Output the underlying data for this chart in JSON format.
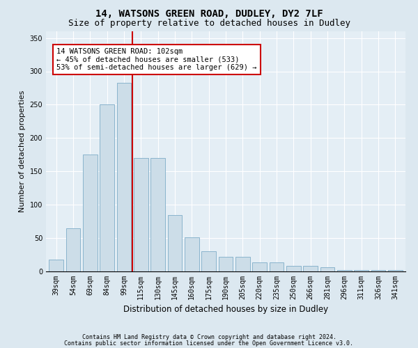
{
  "title1": "14, WATSONS GREEN ROAD, DUDLEY, DY2 7LF",
  "title2": "Size of property relative to detached houses in Dudley",
  "xlabel": "Distribution of detached houses by size in Dudley",
  "ylabel": "Number of detached properties",
  "categories": [
    "39sqm",
    "54sqm",
    "69sqm",
    "84sqm",
    "99sqm",
    "115sqm",
    "130sqm",
    "145sqm",
    "160sqm",
    "175sqm",
    "190sqm",
    "205sqm",
    "220sqm",
    "235sqm",
    "250sqm",
    "266sqm",
    "281sqm",
    "296sqm",
    "311sqm",
    "326sqm",
    "341sqm"
  ],
  "values": [
    18,
    65,
    175,
    250,
    283,
    170,
    170,
    85,
    51,
    30,
    22,
    22,
    14,
    14,
    8,
    8,
    6,
    2,
    2,
    2,
    2
  ],
  "bar_color": "#ccdde8",
  "bar_edge_color": "#8ab4cc",
  "vline_color": "#cc0000",
  "vline_pos": 4.5,
  "annotation_text": "14 WATSONS GREEN ROAD: 102sqm\n← 45% of detached houses are smaller (533)\n53% of semi-detached houses are larger (629) →",
  "footer1": "Contains HM Land Registry data © Crown copyright and database right 2024.",
  "footer2": "Contains public sector information licensed under the Open Government Licence v3.0.",
  "bg_color": "#dce8f0",
  "plot_bg_color": "#e4eef5",
  "ylim": [
    0,
    360
  ],
  "title_fontsize": 10,
  "subtitle_fontsize": 9,
  "tick_fontsize": 7,
  "ylabel_fontsize": 8,
  "xlabel_fontsize": 8.5,
  "footer_fontsize": 6,
  "annot_fontsize": 7.5
}
